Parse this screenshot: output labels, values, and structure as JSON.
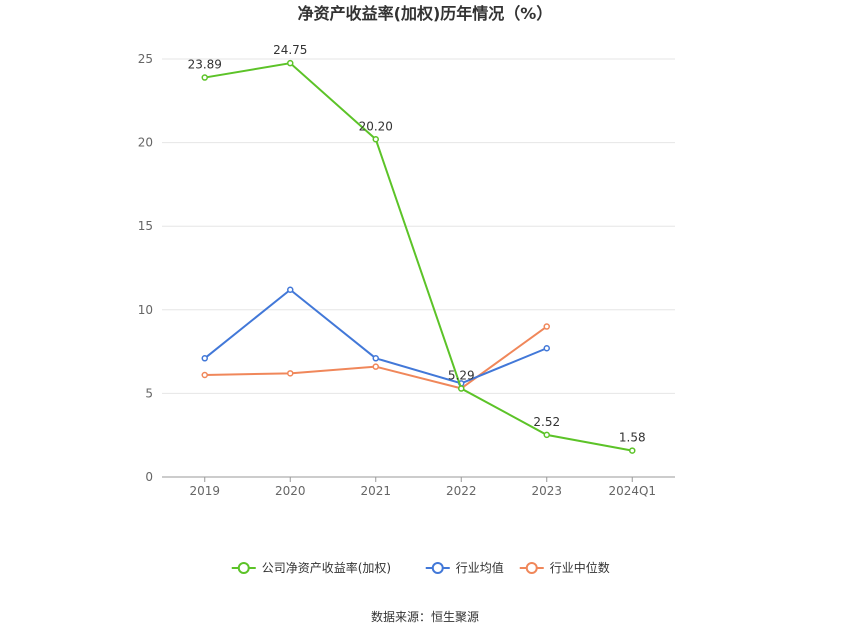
{
  "chart_data": {
    "type": "line",
    "title": "净资产收益率(加权)历年情况（%）",
    "categories": [
      "2019",
      "2020",
      "2021",
      "2022",
      "2023",
      "2024Q1"
    ],
    "ylim": [
      0,
      25
    ],
    "yticks": [
      0,
      5,
      10,
      15,
      20,
      25
    ],
    "grid": true,
    "legend_position": "bottom",
    "series": [
      {
        "name": "公司净资产收益率(加权)",
        "color": "#5cc328",
        "values": [
          23.89,
          24.75,
          20.2,
          5.29,
          2.52,
          1.58
        ],
        "labels": [
          "23.89",
          "24.75",
          "20.20",
          "5.29",
          "2.52",
          "1.58"
        ]
      },
      {
        "name": "行业均值",
        "color": "#4278d8",
        "values": [
          7.1,
          11.2,
          7.1,
          5.6,
          7.7,
          null
        ]
      },
      {
        "name": "行业中位数",
        "color": "#f0875a",
        "values": [
          6.1,
          6.2,
          6.6,
          5.3,
          9.0,
          null
        ]
      }
    ]
  },
  "source": "数据来源：恒生聚源"
}
